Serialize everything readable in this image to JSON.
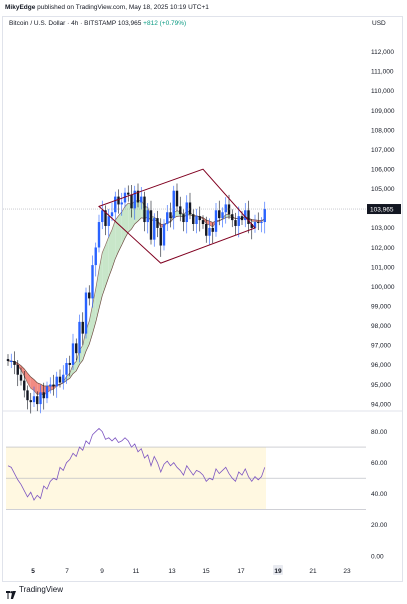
{
  "publisher": {
    "name": "MikyEdge",
    "text": "published on TradingView.com, May 18, 2025 10:19 UTC+1"
  },
  "header": {
    "symbol_line": "Bitcoin / U.S. Dollar · 4h · BITSTAMP",
    "last_price": "103,965",
    "change": "+812 (+0.79%)",
    "currency": "USD"
  },
  "price_axis": {
    "labels": [
      "112,000",
      "111,000",
      "110,000",
      "109,000",
      "108,000",
      "107,000",
      "106,000",
      "105,000",
      "104,000",
      "103,000",
      "102,000",
      "101,000",
      "100,000",
      "99,000",
      "98,000",
      "97,000",
      "96,000",
      "95,000",
      "94,000"
    ],
    "current_tag": "103,965"
  },
  "rsi_axis": {
    "labels": [
      "80.00",
      "60.00",
      "40.00",
      "20.00",
      "0.00"
    ]
  },
  "time_axis": {
    "labels": [
      "5",
      "7",
      "9",
      "11",
      "13",
      "15",
      "17",
      "19",
      "21",
      "23"
    ],
    "highlighted": "19"
  },
  "footer": {
    "logo_text": "TradingView"
  },
  "colors": {
    "up": "#2962ff",
    "down": "#131722",
    "pattern": "#800020",
    "ribbon_bull": "#c8e6c9",
    "ribbon_bear": "#f28b82",
    "rsi_line": "#7e57c2",
    "rsi_fill": "#fff8e1"
  },
  "chart_data": [
    {
      "type": "candlestick",
      "title": "Bitcoin / U.S. Dollar · 4h · BITSTAMP",
      "ylim": [
        93800,
        112600
      ],
      "closes": [
        96200,
        96200,
        96000,
        95500,
        95200,
        94700,
        94200,
        94100,
        94400,
        94000,
        94600,
        94300,
        94900,
        95000,
        94900,
        95400,
        95100,
        95500,
        96100,
        96000,
        97100,
        96600,
        98200,
        97600,
        99700,
        99400,
        101100,
        102000,
        103300,
        103900,
        103100,
        103600,
        103800,
        104600,
        104200,
        104300,
        104800,
        104700,
        104000,
        104900,
        104300,
        104600,
        103300,
        103900,
        102400,
        103500,
        103000,
        102100,
        103200,
        103800,
        103500,
        104900,
        104100,
        103700,
        103300,
        104300,
        103700,
        103200,
        103600,
        103400,
        103200,
        102600,
        103000,
        102800,
        103900,
        103500,
        103800,
        104200,
        103700,
        103400,
        103100,
        103600,
        103400,
        103900,
        103200,
        103000,
        103300,
        103250,
        103300,
        103965
      ],
      "trend_pattern": "diamond",
      "pattern_points": [
        [
          28,
          104100
        ],
        [
          60,
          106000
        ],
        [
          76,
          103000
        ],
        [
          47,
          101200
        ]
      ]
    },
    {
      "type": "line",
      "title": "RSI",
      "ylim": [
        0,
        90
      ],
      "levels": [
        70,
        50,
        30
      ],
      "values": [
        58,
        57,
        53,
        49,
        46,
        42,
        38,
        41,
        36,
        39,
        37,
        45,
        43,
        48,
        50,
        49,
        57,
        55,
        60,
        62,
        66,
        64,
        70,
        68,
        74,
        72,
        78,
        80,
        82,
        80,
        75,
        76,
        74,
        76,
        73,
        74,
        76,
        74,
        70,
        72,
        67,
        69,
        63,
        65,
        58,
        64,
        60,
        54,
        59,
        61,
        58,
        60,
        57,
        55,
        52,
        58,
        55,
        52,
        55,
        54,
        52,
        48,
        50,
        49,
        56,
        53,
        55,
        57,
        53,
        50,
        48,
        54,
        52,
        56,
        51,
        48,
        51,
        49,
        51,
        57
      ]
    }
  ]
}
